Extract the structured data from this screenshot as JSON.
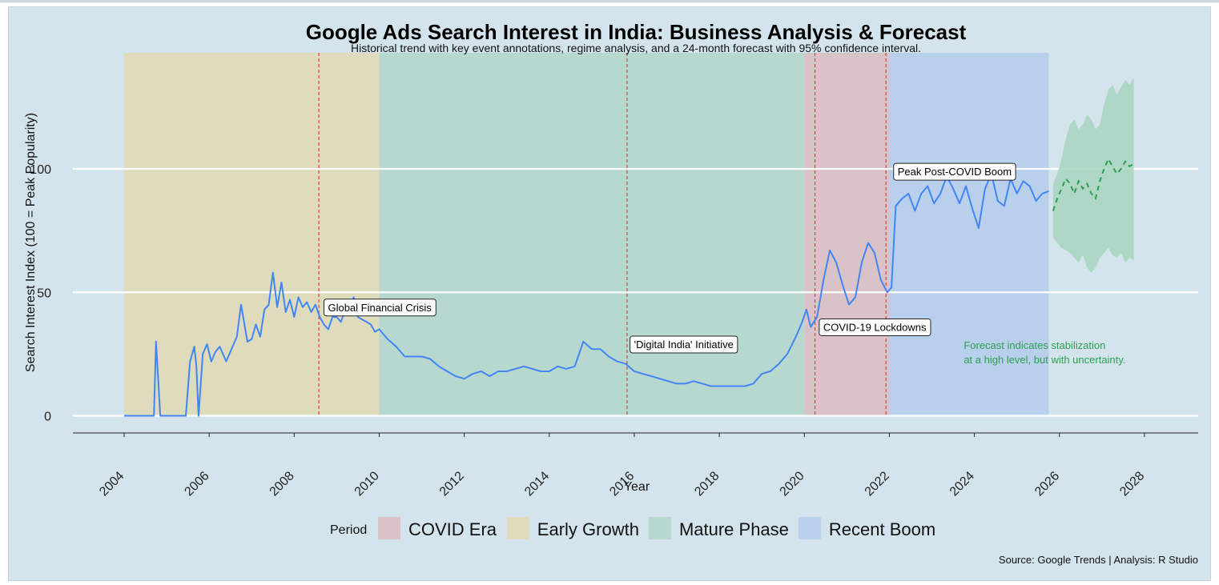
{
  "chart_data": {
    "type": "line",
    "title": "Google Ads Search Interest in India: Business Analysis & Forecast",
    "subtitle": "Historical trend with key event annotations, regime analysis, and a 24-month forecast with 95% confidence interval.",
    "xlabel": "Year",
    "ylabel": "Search Interest Index (100 = Peak Popularity)",
    "caption": "Source: Google Trends | Analysis: R Studio",
    "xlim": [
      2004,
      2028.5
    ],
    "ylim": [
      -7,
      147
    ],
    "x_ticks": [
      "2004",
      "2006",
      "2008",
      "2010",
      "2012",
      "2014",
      "2016",
      "2018",
      "2020",
      "2022",
      "2024",
      "2026",
      "2028"
    ],
    "y_ticks": [
      "0",
      "50",
      "100"
    ],
    "legend": {
      "title": "Period",
      "placement": "bottom",
      "items": [
        {
          "label": "COVID Era",
          "color": "#d9c3c8"
        },
        {
          "label": "Early Growth",
          "color": "#dfdcbe"
        },
        {
          "label": "Mature Phase",
          "color": "#b6d8cf"
        },
        {
          "label": "Recent Boom",
          "color": "#b8d0ec"
        }
      ]
    },
    "regimes": [
      {
        "period": "Early Growth",
        "start": 2004.0,
        "end": 2010.0
      },
      {
        "period": "Mature Phase",
        "start": 2010.0,
        "end": 2020.0
      },
      {
        "period": "COVID Era",
        "start": 2020.0,
        "end": 2022.0
      },
      {
        "period": "Recent Boom",
        "start": 2022.0,
        "end": 2025.75
      }
    ],
    "event_lines": [
      2008.58,
      2015.83,
      2020.25,
      2021.92
    ],
    "annotations": [
      {
        "text": "Global Financial Crisis",
        "x": 2008.7,
        "y": 44
      },
      {
        "text": "'Digital India' Initiative",
        "x": 2015.9,
        "y": 29
      },
      {
        "text": "COVID-19 Lockdowns",
        "x": 2020.35,
        "y": 36
      },
      {
        "text": "Peak Post-COVID Boom",
        "x": 2022.1,
        "y": 99
      }
    ],
    "forecast_note": [
      "Forecast indicates stabilization",
      "at a high level, but with uncertainty."
    ],
    "forecast_note_anchor": {
      "x": 2023.75,
      "y": 27
    },
    "series": [
      {
        "name": "Search interest",
        "color": "#4285f4",
        "x": [
          2004.0,
          2004.2,
          2004.4,
          2004.6,
          2004.7,
          2004.75,
          2004.85,
          2004.95,
          2005.2,
          2005.35,
          2005.45,
          2005.55,
          2005.65,
          2005.7,
          2005.75,
          2005.85,
          2005.95,
          2006.05,
          2006.15,
          2006.25,
          2006.4,
          2006.55,
          2006.65,
          2006.75,
          2006.9,
          2007.0,
          2007.1,
          2007.2,
          2007.3,
          2007.4,
          2007.5,
          2007.6,
          2007.7,
          2007.8,
          2007.9,
          2008.0,
          2008.1,
          2008.2,
          2008.3,
          2008.4,
          2008.5,
          2008.6,
          2008.7,
          2008.8,
          2008.9,
          2009.0,
          2009.1,
          2009.2,
          2009.3,
          2009.4,
          2009.5,
          2009.6,
          2009.7,
          2009.8,
          2009.9,
          2010.0,
          2010.2,
          2010.4,
          2010.6,
          2010.8,
          2011.0,
          2011.2,
          2011.4,
          2011.6,
          2011.8,
          2012.0,
          2012.2,
          2012.4,
          2012.6,
          2012.8,
          2013.0,
          2013.2,
          2013.4,
          2013.6,
          2013.8,
          2014.0,
          2014.2,
          2014.4,
          2014.6,
          2014.8,
          2015.0,
          2015.2,
          2015.4,
          2015.6,
          2015.8,
          2016.0,
          2016.2,
          2016.4,
          2016.6,
          2016.8,
          2017.0,
          2017.2,
          2017.4,
          2017.6,
          2017.8,
          2018.0,
          2018.2,
          2018.4,
          2018.6,
          2018.8,
          2019.0,
          2019.2,
          2019.4,
          2019.6,
          2019.8,
          2019.95,
          2020.05,
          2020.15,
          2020.3,
          2020.45,
          2020.6,
          2020.75,
          2020.9,
          2021.05,
          2021.2,
          2021.35,
          2021.5,
          2021.65,
          2021.8,
          2021.95,
          2022.05,
          2022.15,
          2022.3,
          2022.45,
          2022.6,
          2022.75,
          2022.9,
          2023.05,
          2023.2,
          2023.35,
          2023.5,
          2023.65,
          2023.8,
          2023.95,
          2024.1,
          2024.25,
          2024.4,
          2024.55,
          2024.7,
          2024.85,
          2025.0,
          2025.15,
          2025.3,
          2025.45,
          2025.6,
          2025.75
        ],
        "values": [
          0,
          0,
          0,
          0,
          0,
          30,
          0,
          0,
          0,
          0,
          0,
          22,
          28,
          20,
          0,
          25,
          29,
          22,
          26,
          28,
          22,
          28,
          32,
          45,
          30,
          31,
          37,
          32,
          43,
          45,
          58,
          44,
          54,
          42,
          47,
          40,
          48,
          44,
          46,
          42,
          45,
          40,
          37,
          35,
          40,
          40,
          38,
          43,
          44,
          48,
          40,
          39,
          38,
          37,
          34,
          35,
          31,
          28,
          24,
          24,
          24,
          23,
          20,
          18,
          16,
          15,
          17,
          18,
          16,
          18,
          18,
          19,
          20,
          19,
          18,
          18,
          20,
          19,
          20,
          30,
          27,
          27,
          24,
          22,
          21,
          18,
          17,
          16,
          15,
          14,
          13,
          13,
          14,
          13,
          12,
          12,
          12,
          12,
          12,
          13,
          17,
          18,
          21,
          25,
          32,
          38,
          43,
          36,
          40,
          55,
          67,
          62,
          53,
          45,
          48,
          62,
          70,
          66,
          55,
          50,
          52,
          85,
          88,
          90,
          83,
          90,
          93,
          86,
          90,
          97,
          92,
          86,
          93,
          84,
          76,
          92,
          98,
          87,
          85,
          96,
          90,
          95,
          93,
          87,
          90,
          91
        ]
      },
      {
        "name": "Forecast",
        "color": "#2e9e52",
        "x": [
          2025.85,
          2025.95,
          2026.05,
          2026.15,
          2026.25,
          2026.35,
          2026.45,
          2026.55,
          2026.65,
          2026.75,
          2026.85,
          2026.95,
          2027.05,
          2027.15,
          2027.25,
          2027.35,
          2027.45,
          2027.55,
          2027.65,
          2027.75
        ],
        "values": [
          83,
          88,
          92,
          96,
          94,
          90,
          95,
          92,
          94,
          90,
          88,
          95,
          100,
          104,
          101,
          98,
          100,
          103,
          101,
          102
        ],
        "lower": [
          72,
          70,
          68,
          67,
          66,
          64,
          62,
          65,
          60,
          58,
          60,
          64,
          66,
          68,
          65,
          64,
          66,
          62,
          64,
          63
        ],
        "upper": [
          94,
          98,
          104,
          112,
          118,
          120,
          116,
          118,
          122,
          120,
          116,
          118,
          126,
          132,
          134,
          130,
          133,
          136,
          134,
          137
        ]
      }
    ]
  }
}
